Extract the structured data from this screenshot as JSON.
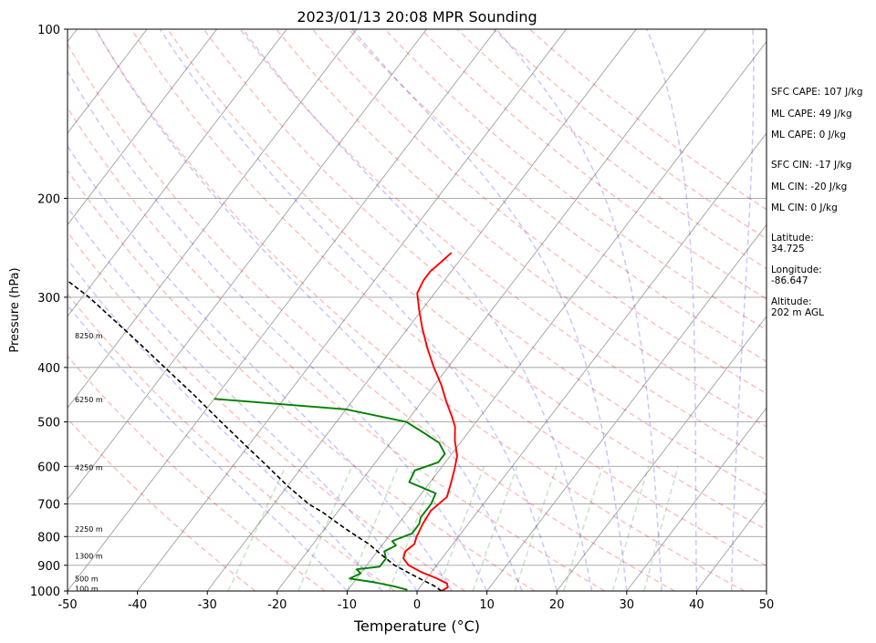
{
  "chart_data": {
    "type": "line",
    "subtype": "skew-t log-p sounding",
    "title": "2023/01/13 20:08 MPR Sounding",
    "xlabel": "Temperature (°C)",
    "ylabel": "Pressure (hPa)",
    "xlim": [
      -50,
      50
    ],
    "ylim": [
      1000,
      100
    ],
    "y_scale": "log",
    "x_ticks": [
      -50,
      -40,
      -30,
      -20,
      -10,
      0,
      10,
      20,
      30,
      40,
      50
    ],
    "y_ticks": [
      100,
      200,
      300,
      400,
      500,
      600,
      700,
      800,
      900,
      1000
    ],
    "grid": true,
    "legend": "none",
    "colors": {
      "temperature": "#ff0000",
      "dewpoint": "#008000",
      "parcel": "#000000",
      "dry_adiabats": "#ff0000",
      "moist_adiabats": "#0000ff",
      "mixing_ratio": "#008000",
      "isotherms": "#808080"
    },
    "series": [
      {
        "key": "temperature",
        "points": [
          [
            3.5,
            1000
          ],
          [
            4,
            985
          ],
          [
            3.5,
            970
          ],
          [
            1.5,
            950
          ],
          [
            -1.5,
            925
          ],
          [
            -4,
            900
          ],
          [
            -5.5,
            875
          ],
          [
            -6,
            850
          ],
          [
            -5.5,
            825
          ],
          [
            -6,
            800
          ],
          [
            -6.5,
            760
          ],
          [
            -6.8,
            720
          ],
          [
            -6,
            680
          ],
          [
            -7,
            640
          ],
          [
            -8,
            605
          ],
          [
            -9,
            575
          ],
          [
            -11,
            540
          ],
          [
            -12.5,
            510
          ],
          [
            -14,
            490
          ],
          [
            -16.5,
            460
          ],
          [
            -19,
            430
          ],
          [
            -22,
            400
          ],
          [
            -25,
            370
          ],
          [
            -28,
            340
          ],
          [
            -30.5,
            315
          ],
          [
            -32.5,
            295
          ],
          [
            -33,
            280
          ],
          [
            -33,
            270
          ],
          [
            -32.5,
            260
          ],
          [
            -32,
            250
          ]
        ]
      },
      {
        "key": "dewpoint",
        "points": [
          [
            -1.5,
            995
          ],
          [
            -4,
            980
          ],
          [
            -7,
            965
          ],
          [
            -11,
            950
          ],
          [
            -10,
            930
          ],
          [
            -11,
            915
          ],
          [
            -8,
            905
          ],
          [
            -8,
            875
          ],
          [
            -9,
            850
          ],
          [
            -8,
            830
          ],
          [
            -9,
            815
          ],
          [
            -7,
            790
          ],
          [
            -7,
            760
          ],
          [
            -7.5,
            740
          ],
          [
            -7.5,
            700
          ],
          [
            -8,
            670
          ],
          [
            -13,
            640
          ],
          [
            -13.5,
            610
          ],
          [
            -11,
            590
          ],
          [
            -11,
            570
          ],
          [
            -13,
            545
          ],
          [
            -16,
            525
          ],
          [
            -20,
            500
          ],
          [
            -30,
            475
          ],
          [
            -50,
            455
          ]
        ]
      },
      {
        "key": "parcel",
        "points": [
          [
            3.5,
            1000
          ],
          [
            2,
            980
          ],
          [
            -1,
            950
          ],
          [
            -3.5,
            925
          ],
          [
            -6,
            900
          ],
          [
            -8,
            875
          ],
          [
            -10,
            850
          ],
          [
            -12,
            825
          ],
          [
            -14.5,
            800
          ],
          [
            -17,
            775
          ],
          [
            -19.5,
            750
          ],
          [
            -22,
            725
          ],
          [
            -25,
            700
          ],
          [
            -30,
            650
          ],
          [
            -35,
            600
          ],
          [
            -40.5,
            550
          ],
          [
            -46.5,
            500
          ],
          [
            -53,
            450
          ],
          [
            -60.5,
            400
          ],
          [
            -69,
            350
          ],
          [
            -79,
            300
          ],
          [
            -84,
            280
          ]
        ]
      }
    ],
    "dry_adiabats_theta_K": [
      250,
      260,
      270,
      280,
      290,
      300,
      310,
      320,
      330,
      340,
      350,
      360,
      370,
      380,
      390,
      400,
      410,
      420,
      430,
      440
    ],
    "moist_adiabats_start_C": [
      -10,
      -5,
      0,
      5,
      10,
      15,
      20,
      25,
      30,
      35,
      40,
      45
    ],
    "mixing_ratio_start_C": [
      -27,
      -17,
      -10,
      -4,
      3,
      8,
      14,
      21,
      28,
      32.5
    ],
    "height_labels": [
      {
        "text": "100 m",
        "p": 991
      },
      {
        "text": "500 m",
        "p": 950
      },
      {
        "text": "1300 m",
        "p": 866
      },
      {
        "text": "2250 m",
        "p": 775
      },
      {
        "text": "4250 m",
        "p": 603
      },
      {
        "text": "6250 m",
        "p": 456
      },
      {
        "text": "8250 m",
        "p": 351
      }
    ],
    "annotations": [
      "SFC CAPE: 107 J/kg",
      "ML CAPE: 49 J/kg",
      "ML CAPE: 0 J/kg",
      "SFC CIN: -17 J/kg",
      "ML CIN: -20 J/kg",
      "ML CIN: 0 J/kg",
      "Latitude:",
      "34.725",
      "Longitude:",
      "-86.647",
      "Altitude:",
      "202 m AGL"
    ]
  }
}
